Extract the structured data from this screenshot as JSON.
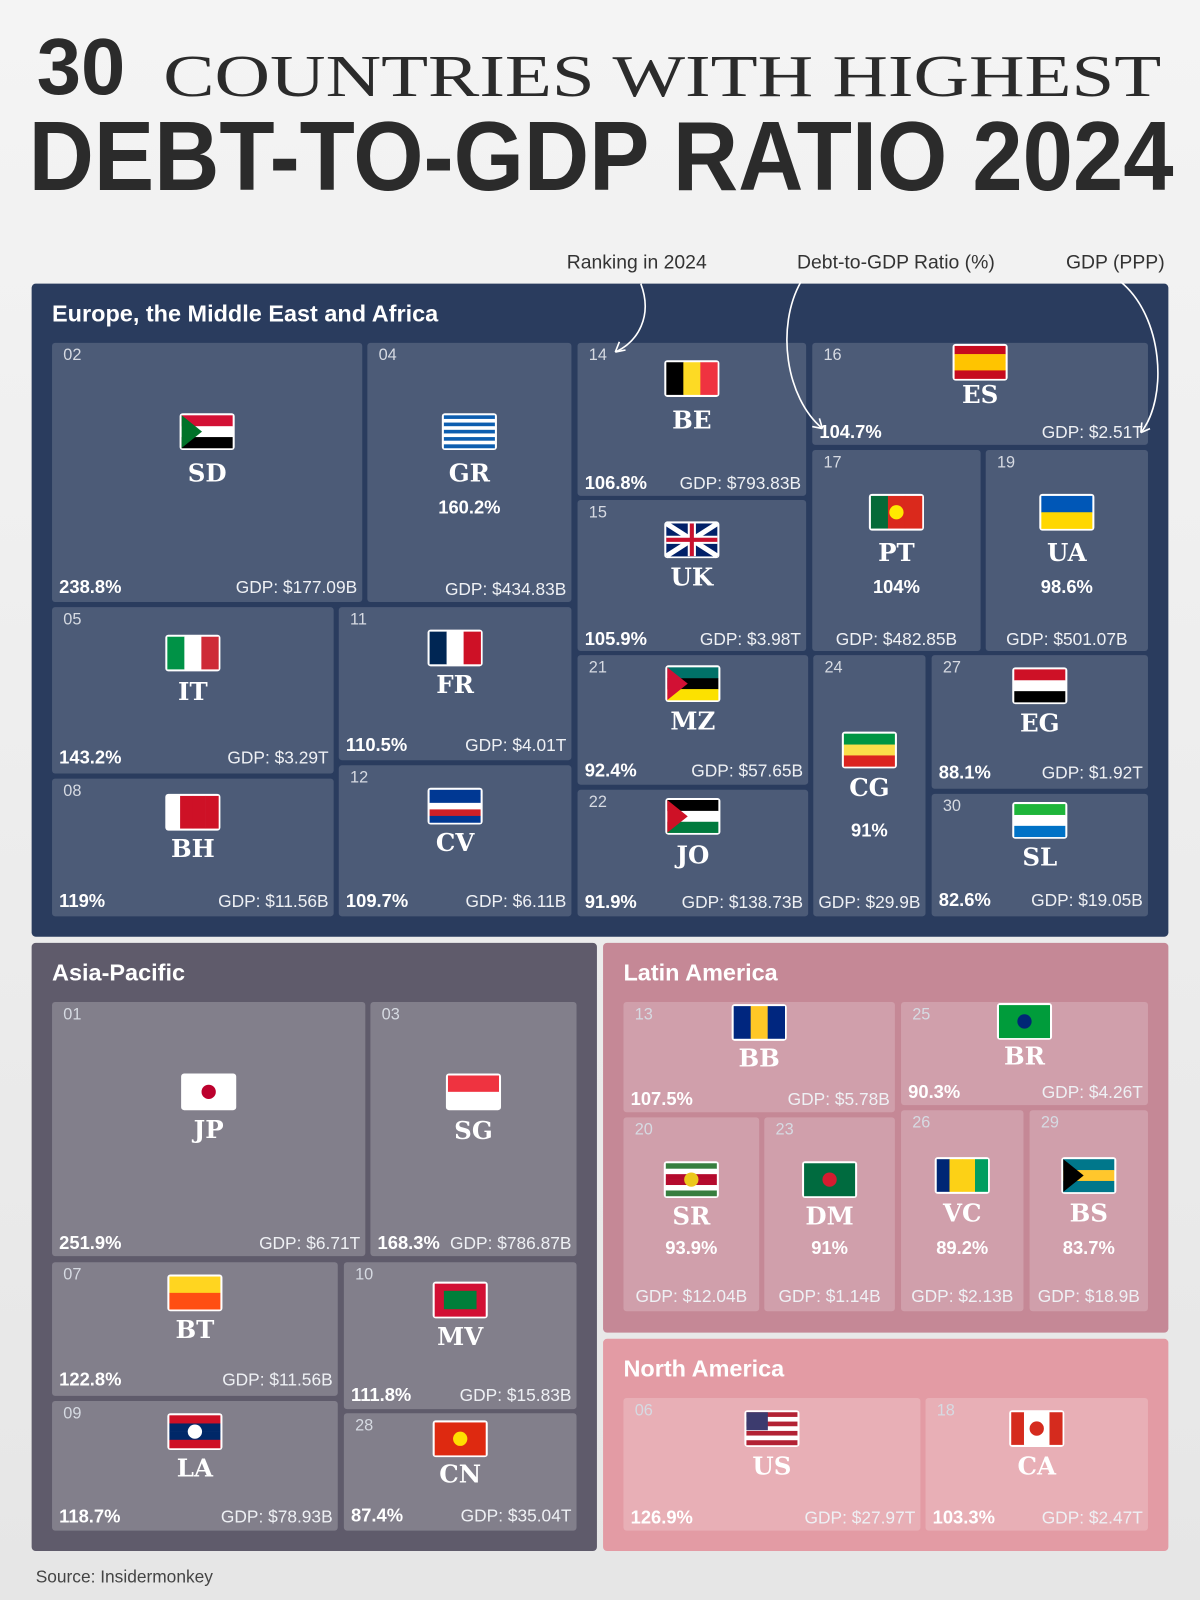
{
  "header": {
    "title_number": "30",
    "title_line1": "COUNTRIES WITH HIGHEST",
    "title_line2": "DEBT-TO-GDP RATIO 2024"
  },
  "legend": {
    "rank": "Ranking in 2024",
    "ratio": "Debt-to-GDP Ratio (%)",
    "gdp": "GDP (PPP)"
  },
  "regions": [
    {
      "name": "Europe, the Middle East and Africa",
      "countries": [
        {
          "rank": "02",
          "code": "SD",
          "ratio": "238.8%",
          "gdp": "GDP: $177.09B"
        },
        {
          "rank": "04",
          "code": "GR",
          "ratio": "160.2%",
          "gdp": "GDP: $434.83B"
        },
        {
          "rank": "14",
          "code": "BE",
          "ratio": "106.8%",
          "gdp": "GDP: $793.83B"
        },
        {
          "rank": "16",
          "code": "ES",
          "ratio": "104.7%",
          "gdp": "GDP: $2.51T"
        },
        {
          "rank": "15",
          "code": "UK",
          "ratio": "105.9%",
          "gdp": "GDP: $3.98T"
        },
        {
          "rank": "17",
          "code": "PT",
          "ratio": "104%",
          "gdp": "GDP: $482.85B"
        },
        {
          "rank": "19",
          "code": "UA",
          "ratio": "98.6%",
          "gdp": "GDP: $501.07B"
        },
        {
          "rank": "05",
          "code": "IT",
          "ratio": "143.2%",
          "gdp": "GDP: $3.29T"
        },
        {
          "rank": "11",
          "code": "FR",
          "ratio": "110.5%",
          "gdp": "GDP: $4.01T"
        },
        {
          "rank": "08",
          "code": "BH",
          "ratio": "119%",
          "gdp": "GDP: $11.56B"
        },
        {
          "rank": "12",
          "code": "CV",
          "ratio": "109.7%",
          "gdp": "GDP: $6.11B"
        },
        {
          "rank": "21",
          "code": "MZ",
          "ratio": "92.4%",
          "gdp": "GDP: $57.65B"
        },
        {
          "rank": "22",
          "code": "JO",
          "ratio": "91.9%",
          "gdp": "GDP: $138.73B"
        },
        {
          "rank": "24",
          "code": "CG",
          "ratio": "91%",
          "gdp": "GDP: $29.9B"
        },
        {
          "rank": "27",
          "code": "EG",
          "ratio": "88.1%",
          "gdp": "GDP: $1.92T"
        },
        {
          "rank": "30",
          "code": "SL",
          "ratio": "82.6%",
          "gdp": "GDP: $19.05B"
        }
      ]
    },
    {
      "name": "Asia-Pacific",
      "countries": [
        {
          "rank": "01",
          "code": "JP",
          "ratio": "251.9%",
          "gdp": "GDP: $6.71T"
        },
        {
          "rank": "03",
          "code": "SG",
          "ratio": "168.3%",
          "gdp": "GDP: $786.87B"
        },
        {
          "rank": "07",
          "code": "BT",
          "ratio": "122.8%",
          "gdp": "GDP: $11.56B"
        },
        {
          "rank": "10",
          "code": "MV",
          "ratio": "111.8%",
          "gdp": "GDP: $15.83B"
        },
        {
          "rank": "09",
          "code": "LA",
          "ratio": "118.7%",
          "gdp": "GDP: $78.93B"
        },
        {
          "rank": "28",
          "code": "CN",
          "ratio": "87.4%",
          "gdp": "GDP: $35.04T"
        }
      ]
    },
    {
      "name": "Latin America",
      "countries": [
        {
          "rank": "13",
          "code": "BB",
          "ratio": "107.5%",
          "gdp": "GDP: $5.78B"
        },
        {
          "rank": "25",
          "code": "BR",
          "ratio": "90.3%",
          "gdp": "GDP: $4.26T"
        },
        {
          "rank": "20",
          "code": "SR",
          "ratio": "93.9%",
          "gdp": "GDP: $12.04B"
        },
        {
          "rank": "23",
          "code": "DM",
          "ratio": "91%",
          "gdp": "GDP: $1.14B"
        },
        {
          "rank": "26",
          "code": "VC",
          "ratio": "89.2%",
          "gdp": "GDP: $2.13B"
        },
        {
          "rank": "29",
          "code": "BS",
          "ratio": "83.7%",
          "gdp": "GDP: $18.9B"
        }
      ]
    },
    {
      "name": "North America",
      "countries": [
        {
          "rank": "06",
          "code": "US",
          "ratio": "126.9%",
          "gdp": "GDP: $27.97T"
        },
        {
          "rank": "18",
          "code": "CA",
          "ratio": "103.3%",
          "gdp": "GDP: $2.47T"
        }
      ]
    }
  ],
  "source": "Source: Insidermonkey"
}
